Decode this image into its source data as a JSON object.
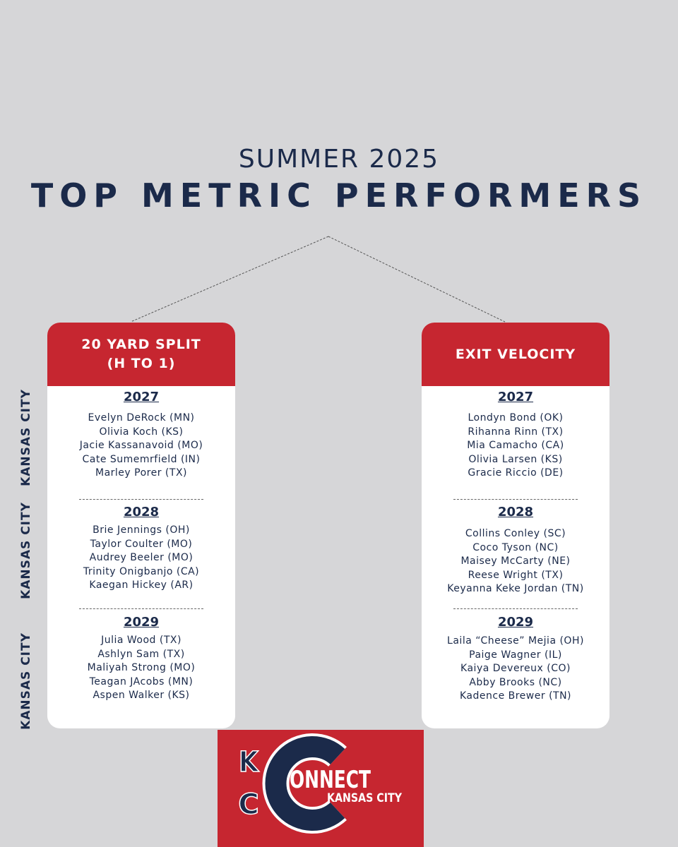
{
  "header": {
    "subtitle": "SUMMER 2025",
    "title": "TOP METRIC PERFORMERS"
  },
  "side_labels": [
    "KANSAS CITY",
    "KANSAS CITY",
    "KANSAS CITY"
  ],
  "cards": [
    {
      "title": [
        "20 YARD SPLIT",
        "(H TO 1)"
      ],
      "groups": [
        {
          "year": "2027",
          "names": [
            "Evelyn DeRock (MN)",
            "Olivia Koch (KS)",
            "Jacie Kassanavoid (MO)",
            "Cate Sumemrfield (IN)",
            "Marley Porer (TX)"
          ]
        },
        {
          "year": "2028",
          "names": [
            "Brie Jennings (OH)",
            "Taylor Coulter (MO)",
            "Audrey Beeler (MO)",
            "Trinity Onigbanjo (CA)",
            "Kaegan Hickey (AR)"
          ]
        },
        {
          "year": "2029",
          "names": [
            "Julia Wood (TX)",
            "Ashlyn Sam (TX)",
            "Maliyah Strong (MO)",
            "Teagan JAcobs (MN)",
            "Aspen Walker (KS)"
          ]
        }
      ]
    },
    {
      "title": [
        "EXIT VELOCITY"
      ],
      "groups": [
        {
          "year": "2027",
          "names": [
            "Londyn Bond (OK)",
            "Rihanna Rinn (TX)",
            "Mia Camacho (CA)",
            "Olivia Larsen (KS)",
            "Gracie Riccio (DE)"
          ]
        },
        {
          "year": "2028",
          "names": [
            "Collins Conley (SC)",
            "Coco Tyson (NC)",
            "Maisey McCarty (NE)",
            "Reese Wright (TX)",
            "Keyanna Keke Jordan (TN)"
          ]
        },
        {
          "year": "2029",
          "names": [
            "Laila “Cheese” Mejia (OH)",
            "Paige Wagner (IL)",
            "Kaiya Devereux (CO)",
            "Abby Brooks (NC)",
            "Kadence Brewer (TN)"
          ]
        }
      ]
    }
  ],
  "logo": {
    "k": "K",
    "c": "C",
    "word": "ONNECT",
    "city": "KANSAS CITY"
  }
}
